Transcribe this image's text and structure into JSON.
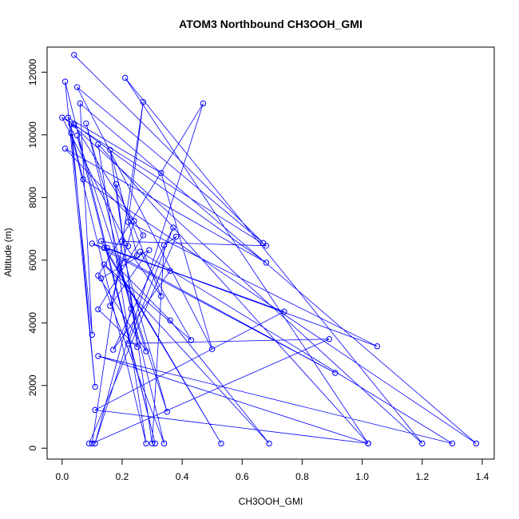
{
  "chart_data": {
    "type": "line",
    "title": "ATOM3 Northbound CH3OOH_GMI",
    "xlabel": "CH3OOH_GMI",
    "ylabel": "Altitude (m)",
    "xlim": [
      -0.05,
      1.44
    ],
    "ylim": [
      -350,
      12800
    ],
    "x_ticks": [
      0.0,
      0.2,
      0.4,
      0.6,
      0.8,
      1.0,
      1.2,
      1.4
    ],
    "x_tick_labels": [
      "0.0",
      "0.2",
      "0.4",
      "0.6",
      "0.8",
      "1.0",
      "1.2",
      "1.4"
    ],
    "y_ticks": [
      0,
      2000,
      4000,
      6000,
      8000,
      10000,
      12000
    ],
    "y_tick_labels": [
      "0",
      "2000",
      "4000",
      "6000",
      "8000",
      "10000",
      "12000"
    ],
    "grid": false,
    "series_color": "#0000ff",
    "marker": "open-circle",
    "series": [
      {
        "x": [
          0.04,
          0.67,
          0.05,
          0.5,
          0.33,
          0.02,
          0.07,
          1.38,
          0.06,
          0.1,
          0.03,
          0.28,
          0.12,
          1.02,
          0.21,
          1.2,
          0.03,
          0.11,
          0.01,
          0.31,
          0.05,
          0.35,
          0.08,
          0.34,
          0.13,
          0.29,
          0.16,
          0.24,
          0.01,
          0.68,
          0.04,
          0.27,
          0.12,
          0.25,
          0.18,
          0.33,
          0.2,
          0.68,
          0.0,
          0.22,
          0.13,
          0.53,
          0.14,
          0.91,
          0.1,
          0.36,
          0.17,
          0.37,
          0.22,
          0.89,
          0.1,
          0.27,
          0.22,
          1.05,
          0.15,
          0.74,
          0.11,
          1.02,
          0.12,
          1.3,
          0.26,
          0.43,
          0.14,
          0.69,
          0.36,
          0.19,
          0.28,
          0.12,
          0.47,
          0.11,
          0.23,
          0.19,
          0.25,
          0.16,
          0.3,
          0.34,
          0.38,
          0.09
        ],
        "y": [
          12550,
          6550,
          11520,
          3160,
          8780,
          10550,
          8580,
          150,
          11000,
          3620,
          10050,
          150,
          9700,
          150,
          11820,
          150,
          10350,
          1960,
          11700,
          150,
          9980,
          1160,
          10360,
          150,
          5420,
          6320,
          4540,
          7250,
          9560,
          5920,
          10330,
          6790,
          4430,
          3230,
          8430,
          4850,
          6600,
          6460,
          10550,
          6450,
          6610,
          150,
          6390,
          2400,
          6530,
          5660,
          3140,
          7040,
          3340,
          3480,
          150,
          11050,
          7220,
          3250,
          6390,
          4360,
          1220,
          150,
          2940,
          150,
          6270,
          3450,
          5860,
          150,
          4080,
          5730,
          3090,
          5510,
          11000,
          150,
          4450,
          5940,
          6150,
          9520,
          150,
          6480,
          6750,
          150
        ]
      }
    ]
  }
}
